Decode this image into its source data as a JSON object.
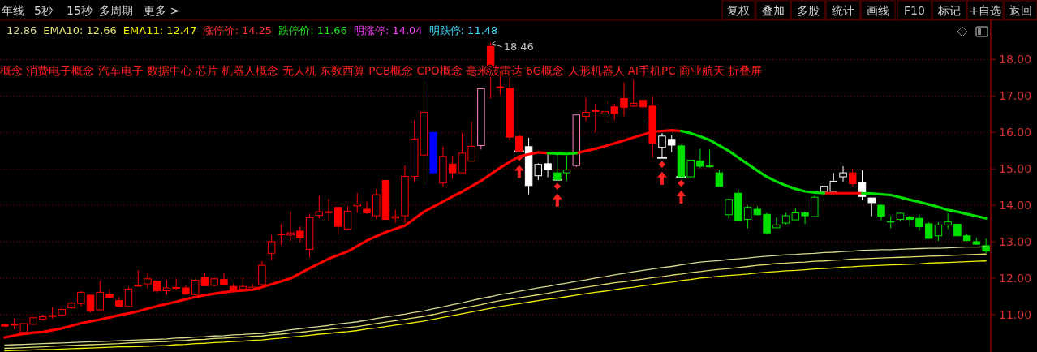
{
  "chart_data": {
    "type": "candlestick",
    "legend": "top left",
    "grid": "y",
    "categories": [
      null,
      null,
      null,
      null,
      null,
      null,
      null,
      null,
      null,
      null,
      null,
      null,
      null,
      null,
      null,
      null,
      null,
      null,
      null,
      null,
      null,
      null,
      null,
      null,
      null,
      null,
      null,
      null,
      null,
      null,
      null,
      null,
      null,
      null,
      null,
      null,
      null,
      null,
      null,
      null,
      null,
      null,
      null,
      null,
      null,
      null,
      null,
      null,
      null,
      null,
      null,
      null,
      null,
      null,
      null,
      null,
      null,
      null,
      null,
      null,
      null,
      null,
      null,
      null,
      null,
      null,
      null,
      null,
      null,
      null,
      null,
      null,
      null,
      null,
      null,
      null,
      null,
      null,
      null,
      null,
      null,
      null,
      null,
      null,
      null,
      null,
      null,
      null,
      null,
      null,
      null,
      null,
      null,
      null,
      null,
      null,
      null,
      null,
      null,
      null,
      null,
      null,
      null,
      null
    ],
    "ohlc": [
      [
        10.72,
        10.74,
        10.66,
        10.68
      ],
      [
        10.72,
        10.89,
        10.59,
        10.73
      ],
      [
        10.51,
        10.77,
        10.46,
        10.75
      ],
      [
        10.73,
        10.92,
        10.72,
        10.91
      ],
      [
        10.87,
        11.0,
        10.84,
        10.94
      ],
      [
        10.95,
        11.2,
        10.89,
        10.97
      ],
      [
        10.99,
        11.26,
        10.96,
        11.14
      ],
      [
        11.18,
        11.34,
        11.16,
        11.31
      ],
      [
        11.3,
        11.64,
        11.22,
        11.61
      ],
      [
        11.53,
        11.53,
        11.06,
        11.09
      ],
      [
        11.13,
        11.92,
        11.11,
        11.61
      ],
      [
        11.56,
        11.7,
        11.47,
        11.47
      ],
      [
        11.38,
        11.47,
        11.21,
        11.23
      ],
      [
        11.22,
        11.76,
        11.2,
        11.7
      ],
      [
        11.8,
        12.22,
        11.77,
        11.78
      ],
      [
        11.84,
        12.13,
        11.71,
        11.98
      ],
      [
        11.92,
        11.92,
        11.6,
        11.65
      ],
      [
        11.65,
        11.95,
        11.55,
        11.73
      ],
      [
        11.72,
        11.97,
        11.67,
        11.74
      ],
      [
        11.73,
        11.79,
        11.53,
        11.56
      ],
      [
        11.55,
        11.98,
        11.53,
        11.94
      ],
      [
        12.02,
        12.16,
        11.78,
        11.79
      ],
      [
        11.8,
        11.98,
        11.76,
        11.98
      ],
      [
        11.96,
        12.16,
        11.79,
        11.81
      ],
      [
        11.77,
        11.84,
        11.64,
        11.67
      ],
      [
        11.7,
        12.0,
        11.64,
        11.77
      ],
      [
        11.68,
        11.84,
        11.66,
        11.75
      ],
      [
        11.82,
        12.46,
        11.8,
        12.35
      ],
      [
        12.68,
        13.19,
        12.49,
        13.0
      ],
      [
        13.19,
        13.48,
        12.91,
        13.21
      ],
      [
        13.18,
        13.83,
        13.02,
        13.24
      ],
      [
        13.29,
        13.42,
        12.98,
        13.1
      ],
      [
        12.79,
        13.77,
        12.56,
        13.66
      ],
      [
        13.72,
        14.27,
        13.64,
        13.82
      ],
      [
        13.8,
        14.18,
        13.59,
        13.82
      ],
      [
        13.94,
        13.94,
        13.2,
        13.42
      ],
      [
        13.35,
        13.97,
        13.35,
        13.84
      ],
      [
        13.98,
        14.33,
        13.79,
        14.03
      ],
      [
        13.89,
        14.1,
        13.75,
        13.79
      ],
      [
        13.71,
        14.45,
        13.62,
        14.29
      ],
      [
        14.68,
        14.7,
        13.6,
        13.61
      ],
      [
        13.65,
        13.88,
        13.52,
        13.69
      ],
      [
        13.71,
        15.09,
        13.51,
        14.79
      ],
      [
        14.79,
        16.33,
        14.62,
        15.82
      ],
      [
        15.38,
        17.42,
        14.55,
        16.55
      ],
      [
        16.0,
        16.0,
        14.89,
        14.89
      ],
      [
        14.61,
        15.61,
        14.5,
        15.34
      ],
      [
        15.13,
        15.36,
        14.73,
        14.89
      ],
      [
        14.89,
        15.98,
        14.89,
        15.43
      ],
      [
        15.21,
        16.29,
        15.21,
        15.62
      ],
      [
        15.64,
        17.2,
        15.53,
        17.2
      ],
      [
        18.36,
        18.46,
        16.93,
        17.6
      ],
      [
        17.24,
        17.67,
        17.04,
        17.25
      ],
      [
        17.22,
        17.63,
        15.78,
        15.87
      ],
      [
        15.89,
        15.96,
        15.48,
        15.48
      ],
      [
        15.61,
        15.85,
        14.3,
        14.54
      ],
      [
        14.81,
        15.15,
        14.69,
        15.12
      ],
      [
        15.14,
        15.39,
        14.77,
        14.97
      ],
      [
        14.89,
        15.38,
        14.7,
        14.7
      ],
      [
        14.89,
        15.37,
        14.68,
        14.97
      ],
      [
        15.09,
        16.48,
        15.05,
        16.48
      ],
      [
        16.44,
        16.95,
        16.31,
        16.55
      ],
      [
        16.58,
        16.78,
        16.0,
        16.6
      ],
      [
        16.51,
        16.84,
        16.31,
        16.57
      ],
      [
        16.7,
        16.78,
        16.33,
        16.52
      ],
      [
        16.93,
        17.37,
        16.44,
        16.69
      ],
      [
        16.72,
        17.44,
        16.7,
        16.8
      ],
      [
        16.88,
        16.88,
        16.4,
        16.7
      ],
      [
        16.72,
        16.98,
        15.3,
        15.7
      ],
      [
        15.59,
        15.98,
        15.3,
        15.9
      ],
      [
        15.81,
        15.92,
        15.46,
        15.65
      ],
      [
        15.63,
        15.66,
        14.78,
        14.78
      ],
      [
        14.78,
        15.24,
        14.74,
        15.24
      ],
      [
        15.22,
        15.55,
        15.02,
        15.07
      ],
      [
        15.06,
        15.53,
        15.03,
        15.08
      ],
      [
        14.89,
        14.97,
        14.52,
        14.52
      ],
      [
        13.74,
        14.16,
        13.63,
        14.16
      ],
      [
        14.33,
        14.44,
        13.58,
        13.58
      ],
      [
        13.61,
        14.0,
        13.37,
        13.94
      ],
      [
        13.89,
        13.97,
        13.72,
        13.74
      ],
      [
        13.75,
        13.79,
        13.21,
        13.24
      ],
      [
        13.38,
        13.66,
        13.37,
        13.46
      ],
      [
        13.51,
        13.79,
        13.47,
        13.71
      ],
      [
        13.6,
        13.93,
        13.6,
        13.79
      ],
      [
        13.79,
        13.82,
        13.48,
        13.71
      ],
      [
        13.69,
        14.26,
        13.69,
        14.22
      ],
      [
        14.38,
        14.63,
        14.24,
        14.52
      ],
      [
        14.38,
        14.89,
        14.38,
        14.66
      ],
      [
        14.78,
        15.07,
        14.65,
        14.89
      ],
      [
        14.89,
        15.0,
        14.52,
        14.59
      ],
      [
        14.63,
        14.96,
        14.14,
        14.24
      ],
      [
        14.2,
        14.2,
        13.7,
        14.07
      ],
      [
        14.0,
        14.03,
        13.59,
        13.7
      ],
      [
        13.54,
        13.7,
        13.37,
        13.56
      ],
      [
        13.61,
        13.8,
        13.56,
        13.78
      ],
      [
        13.68,
        13.72,
        13.41,
        13.61
      ],
      [
        13.64,
        13.75,
        13.3,
        13.41
      ],
      [
        13.49,
        13.53,
        13.08,
        13.09
      ],
      [
        13.16,
        13.53,
        13.02,
        13.46
      ],
      [
        13.46,
        13.78,
        13.35,
        13.54
      ],
      [
        13.48,
        13.48,
        13.16,
        13.16
      ],
      [
        13.16,
        13.21,
        13.01,
        13.03
      ],
      [
        13.0,
        13.1,
        12.91,
        12.93
      ],
      [
        12.89,
        13.08,
        12.68,
        12.74
      ]
    ],
    "colors": [
      "#ff0000",
      "#ff0000",
      "#ff0000",
      "#ff0000",
      "#ff0000",
      "#ff0000",
      "#ff0000",
      "#ff0000",
      "#ff0000",
      "#ff0000",
      "#ff0000",
      "#ff0000",
      "#ff0000",
      "#ff0000",
      "#ff0000",
      "#ff0000",
      "#ff0000",
      "#ff0000",
      "#ff0000",
      "#ff0000",
      "#ff0000",
      "#ff0000",
      "#ff0000",
      "#ff0000",
      "#ff0000",
      "#ff0000",
      "#ff0000",
      "#ff0000",
      "#ff0000",
      "#ff0000",
      "#ff0000",
      "#ff0000",
      "#ff0000",
      "#ff0000",
      "#ff0000",
      "#ff0000",
      "#ff0000",
      "#ff0000",
      "#ff0000",
      "#ff0000",
      "#ff0000",
      "#ff0000",
      "#ff0000",
      "#ff0000",
      "#ff0000",
      "#0000ff",
      "#ff0000",
      "#ff0000",
      "#ff0000",
      "#ff0000",
      "#ff80c0",
      "#ff0000",
      "#ff0000",
      "#ff0000",
      "#ff0000",
      "#ffffff",
      "#ffffff",
      "#ffffff",
      "#00e000",
      "#00e000",
      "#ff80c0",
      "#ff0000",
      "#ff0000",
      "#ff0000",
      "#ff0000",
      "#ff0000",
      "#ff0000",
      "#ff0000",
      "#ff0000",
      "#ffffff",
      "#ffffff",
      "#00e000",
      "#00e000",
      "#00e000",
      "#00e000",
      "#00e000",
      "#00e000",
      "#00e000",
      "#00e000",
      "#00e000",
      "#00e000",
      "#00e000",
      "#00e000",
      "#00e000",
      "#00e000",
      "#00e000",
      "#ffffff",
      "#ffffff",
      "#ffffff",
      "#ff0000",
      "#ffffff",
      "#ffffff",
      "#00e000",
      "#00e000",
      "#00e000",
      "#00e000",
      "#00e000",
      "#00e000",
      "#00e000",
      "#00e000",
      "#00e000",
      "#00e000",
      "#00e000",
      "#00e000"
    ],
    "series": [
      {
        "type": "line",
        "name": "12.86",
        "color": "#d8d890",
        "values": [
          10.16,
          10.17,
          10.18,
          10.19,
          10.2,
          10.21,
          10.22,
          10.23,
          10.24,
          10.25,
          10.26,
          10.27,
          10.28,
          10.29,
          10.3,
          10.31,
          10.32,
          10.33,
          10.35,
          10.36,
          10.38,
          10.39,
          10.41,
          10.42,
          10.44,
          10.45,
          10.47,
          10.48,
          10.51,
          10.54,
          10.58,
          10.61,
          10.64,
          10.67,
          10.7,
          10.74,
          10.77,
          10.8,
          10.84,
          10.89,
          10.93,
          10.97,
          11.01,
          11.06,
          11.1,
          11.16,
          11.21,
          11.27,
          11.32,
          11.38,
          11.44,
          11.49,
          11.55,
          11.59,
          11.64,
          11.68,
          11.73,
          11.77,
          11.82,
          11.86,
          11.91,
          11.95,
          12.0,
          12.04,
          12.09,
          12.13,
          12.17,
          12.21,
          12.25,
          12.29,
          12.32,
          12.36,
          12.4,
          12.44,
          12.46,
          12.48,
          12.51,
          12.53,
          12.55,
          12.58,
          12.6,
          12.62,
          12.64,
          12.65,
          12.67,
          12.68,
          12.7,
          12.71,
          12.73,
          12.74,
          12.76,
          12.77,
          12.78,
          12.78,
          12.79,
          12.8,
          12.81,
          12.82,
          12.82,
          12.83,
          12.84,
          12.85,
          12.85,
          12.86
        ]
      },
      {
        "type": "line",
        "name": "EMA10: 12.66",
        "color": "#e0e070",
        "values": [
          10.07,
          10.08,
          10.09,
          10.1,
          10.11,
          10.13,
          10.14,
          10.15,
          10.16,
          10.17,
          10.18,
          10.19,
          10.2,
          10.22,
          10.23,
          10.24,
          10.25,
          10.26,
          10.28,
          10.29,
          10.31,
          10.32,
          10.34,
          10.35,
          10.37,
          10.38,
          10.4,
          10.41,
          10.44,
          10.46,
          10.49,
          10.51,
          10.54,
          10.57,
          10.59,
          10.62,
          10.64,
          10.67,
          10.71,
          10.75,
          10.79,
          10.83,
          10.87,
          10.91,
          10.95,
          11.0,
          11.06,
          11.11,
          11.17,
          11.22,
          11.27,
          11.33,
          11.38,
          11.42,
          11.46,
          11.5,
          11.54,
          11.58,
          11.63,
          11.67,
          11.71,
          11.75,
          11.79,
          11.83,
          11.87,
          11.9,
          11.94,
          11.97,
          12.01,
          12.04,
          12.08,
          12.11,
          12.15,
          12.18,
          12.21,
          12.24,
          12.26,
          12.29,
          12.32,
          12.35,
          12.37,
          12.4,
          12.41,
          12.43,
          12.44,
          12.46,
          12.47,
          12.49,
          12.5,
          12.52,
          12.53,
          12.54,
          12.55,
          12.56,
          12.57,
          12.58,
          12.59,
          12.6,
          12.61,
          12.62,
          12.63,
          12.64,
          12.65,
          12.66
        ]
      },
      {
        "type": "line",
        "name": "EMA11: 12.47",
        "color": "#f0f000",
        "values": [
          10.0,
          10.01,
          10.02,
          10.03,
          10.04,
          10.04,
          10.05,
          10.06,
          10.07,
          10.08,
          10.09,
          10.1,
          10.11,
          10.11,
          10.12,
          10.13,
          10.14,
          10.15,
          10.17,
          10.18,
          10.2,
          10.21,
          10.23,
          10.24,
          10.26,
          10.27,
          10.29,
          10.3,
          10.33,
          10.35,
          10.38,
          10.4,
          10.43,
          10.46,
          10.48,
          10.51,
          10.53,
          10.56,
          10.6,
          10.63,
          10.67,
          10.71,
          10.74,
          10.78,
          10.82,
          10.87,
          10.92,
          10.97,
          11.02,
          11.07,
          11.12,
          11.17,
          11.22,
          11.26,
          11.3,
          11.34,
          11.38,
          11.42,
          11.45,
          11.49,
          11.53,
          11.57,
          11.61,
          11.64,
          11.68,
          11.72,
          11.75,
          11.79,
          11.82,
          11.86,
          11.89,
          11.93,
          11.96,
          12.0,
          12.02,
          12.05,
          12.07,
          12.09,
          12.11,
          12.14,
          12.16,
          12.18,
          12.2,
          12.21,
          12.23,
          12.25,
          12.26,
          12.28,
          12.3,
          12.31,
          12.33,
          12.34,
          12.35,
          12.36,
          12.37,
          12.38,
          12.39,
          12.41,
          12.42,
          12.43,
          12.44,
          12.45,
          12.46,
          12.47
        ]
      },
      {
        "type": "line",
        "color": "#ff0000",
        "values": [
          10.37,
          10.42,
          10.47,
          10.5,
          10.52,
          10.57,
          10.62,
          10.69,
          10.76,
          10.81,
          10.86,
          10.92,
          10.98,
          11.03,
          11.09,
          11.16,
          11.23,
          11.29,
          11.35,
          11.42,
          11.48,
          11.53,
          11.57,
          11.61,
          11.64,
          11.66,
          11.68,
          11.75,
          11.83,
          11.91,
          11.99,
          12.13,
          12.27,
          12.4,
          12.53,
          12.63,
          12.73,
          12.88,
          13.03,
          13.15,
          13.26,
          13.35,
          13.44,
          13.63,
          13.82,
          13.96,
          14.1,
          14.24,
          14.37,
          14.52,
          14.67,
          14.85,
          15.03,
          15.19,
          15.34,
          15.4,
          15.45,
          15.43,
          null,
          null,
          15.43,
          15.49,
          15.55,
          15.62,
          15.7,
          15.78,
          15.86,
          15.94,
          16.02,
          16.04,
          16.06,
          16.04,
          null,
          null,
          null,
          null,
          null,
          null,
          null,
          null,
          null,
          null,
          null,
          null,
          null,
          null,
          14.33,
          14.33,
          14.33,
          14.33,
          14.33,
          null,
          null,
          null,
          null,
          null,
          null,
          null,
          null,
          null,
          null,
          null,
          null,
          null
        ]
      },
      {
        "type": "line",
        "color": "#00e000",
        "values": [
          null,
          null,
          null,
          null,
          null,
          null,
          null,
          null,
          null,
          null,
          null,
          null,
          null,
          null,
          null,
          null,
          null,
          null,
          null,
          null,
          null,
          null,
          null,
          null,
          null,
          null,
          null,
          null,
          null,
          null,
          null,
          null,
          null,
          null,
          null,
          null,
          null,
          null,
          null,
          null,
          null,
          null,
          null,
          null,
          null,
          null,
          null,
          null,
          null,
          null,
          null,
          null,
          null,
          null,
          null,
          null,
          null,
          15.43,
          15.42,
          15.41,
          15.43,
          null,
          null,
          null,
          null,
          null,
          null,
          null,
          null,
          null,
          null,
          16.04,
          15.98,
          15.89,
          15.79,
          15.64,
          15.49,
          15.31,
          15.13,
          14.95,
          14.78,
          14.65,
          14.54,
          14.45,
          14.38,
          14.35,
          14.33,
          null,
          null,
          null,
          14.33,
          14.32,
          14.3,
          14.28,
          14.22,
          14.15,
          14.09,
          14.02,
          13.95,
          13.87,
          13.82,
          13.76,
          13.7,
          13.64
        ]
      }
    ],
    "ylim": [
      9.97,
      19.08
    ],
    "yticks": [
      {
        "value": 11,
        "label": "11.00"
      },
      {
        "value": 12,
        "label": "12.00"
      },
      {
        "value": 13,
        "label": "13.00"
      },
      {
        "value": 14,
        "label": "14.00"
      },
      {
        "value": 15,
        "label": "15.00"
      },
      {
        "value": 16,
        "label": "16.00"
      },
      {
        "value": 17,
        "label": "17.00"
      },
      {
        "value": 18,
        "label": "18.00"
      }
    ],
    "annotations": [
      "年线",
      "5秒",
      "15秒",
      "多周期",
      "更多 >",
      "复权",
      "叠加",
      "多股",
      "统计",
      "画线",
      "F10",
      "标记",
      "+自选",
      "返回",
      "涨停价: 14.25",
      "跌停价: 11.66",
      "明涨停: 14.04",
      "明跌停: 11.48",
      "概念 消费电子概念 汽车电子 数据中心 芯片 机器人概念 无人机 东数西算 PCB概念 CPO概念 毫米波雷达 6G概念 人形机器人 AI手机PC 商业航天 折叠屏",
      "18.46"
    ]
  }
}
